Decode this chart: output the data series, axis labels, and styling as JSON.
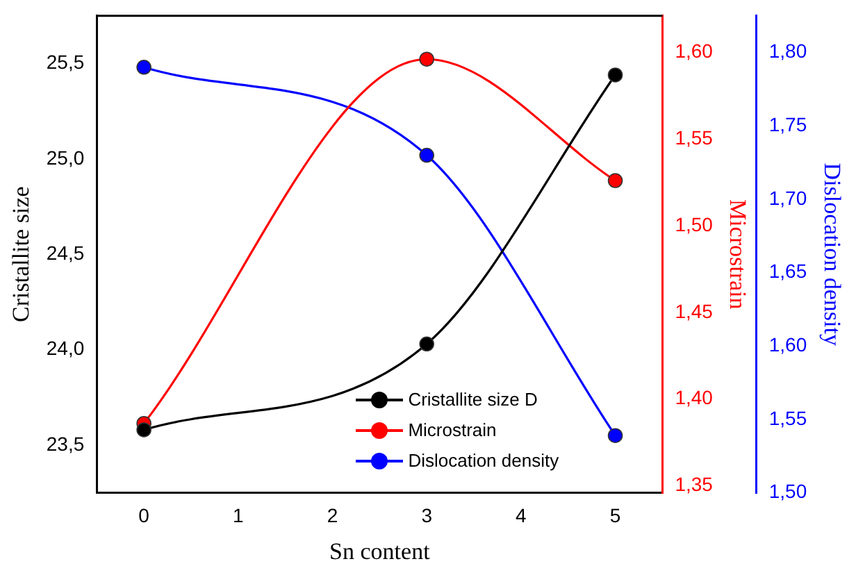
{
  "chart_data": {
    "type": "line",
    "xlabel": "Sn content",
    "ylabel": "Cristallite size",
    "y2label": "Microstrain",
    "y3label": "Dislocation density",
    "x": [
      0,
      3,
      5
    ],
    "series": [
      {
        "name": "Cristallite size D",
        "color": "#000000",
        "values": [
          23.58,
          24.03,
          25.44
        ]
      },
      {
        "name": "Microstrain",
        "color": "#ff0000",
        "values": [
          1.386,
          1.596,
          1.526
        ],
        "axis": "y2"
      },
      {
        "name": "Dislocation density",
        "color": "#0000ff",
        "values": [
          1.79,
          1.73,
          1.539
        ],
        "axis": "y3"
      }
    ],
    "xlim": [
      -0.5,
      5.5
    ],
    "xticks": [
      0,
      1,
      2,
      3,
      4,
      5
    ],
    "ylim": [
      23.25,
      25.75
    ],
    "yticks": [
      {
        "value": 23.5,
        "label": "23,5"
      },
      {
        "value": 24,
        "label": "24,0"
      },
      {
        "value": 24.5,
        "label": "24,5"
      },
      {
        "value": 25,
        "label": "25,0"
      },
      {
        "value": 25.5,
        "label": "25,5"
      }
    ],
    "y2lim": [
      1.346,
      1.621
    ],
    "y2ticks": [
      {
        "value": 1.35,
        "label": "1,35"
      },
      {
        "value": 1.4,
        "label": "1,40"
      },
      {
        "value": 1.45,
        "label": "1,45"
      },
      {
        "value": 1.5,
        "label": "1,50"
      },
      {
        "value": 1.55,
        "label": "1,55"
      },
      {
        "value": 1.6,
        "label": "1,60"
      }
    ],
    "y3lim": [
      1.5,
      1.825
    ],
    "y3ticks": [
      {
        "value": 1.5,
        "label": "1,50"
      },
      {
        "value": 1.55,
        "label": "1,55"
      },
      {
        "value": 1.6,
        "label": "1,60"
      },
      {
        "value": 1.65,
        "label": "1,65"
      },
      {
        "value": 1.7,
        "label": "1,70"
      },
      {
        "value": 1.75,
        "label": "1,75"
      },
      {
        "value": 1.8,
        "label": "1,80"
      }
    ],
    "grid": false,
    "legend": "bottom right",
    "marker": "circle",
    "line_style": "solid"
  }
}
